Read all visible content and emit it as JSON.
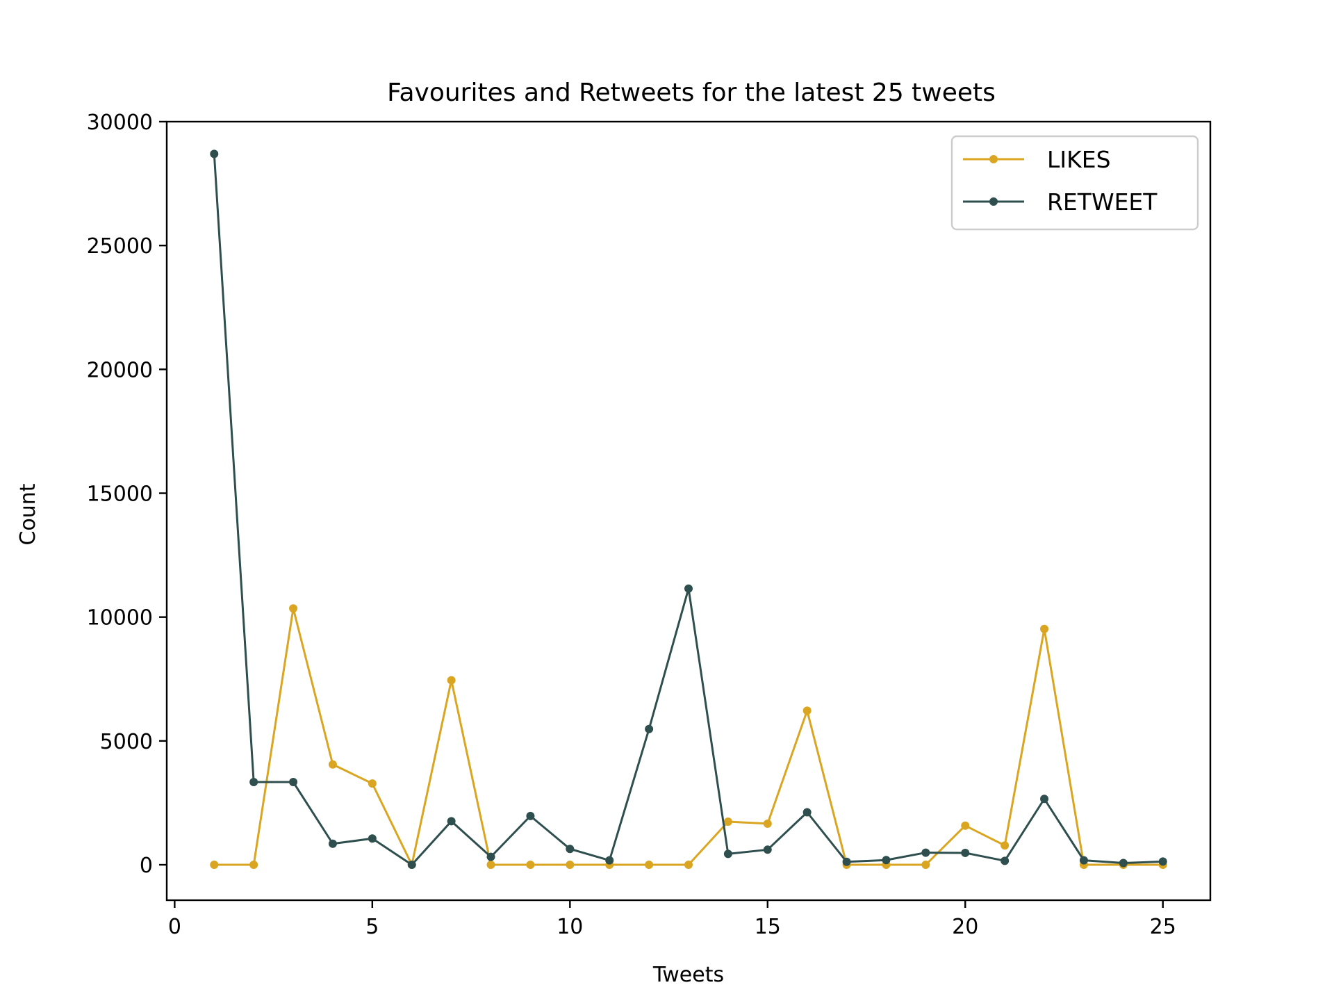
{
  "chart_data": {
    "type": "line",
    "title": "Favourites and Retweets for the latest 25 tweets",
    "xlabel": "Tweets",
    "ylabel": "Count",
    "x": [
      1,
      2,
      3,
      4,
      5,
      6,
      7,
      8,
      9,
      10,
      11,
      12,
      13,
      14,
      15,
      16,
      17,
      18,
      19,
      20,
      21,
      22,
      23,
      24,
      25
    ],
    "xlim": [
      -0.2,
      26.2
    ],
    "ylim": [
      -1430,
      30000
    ],
    "xticks": [
      0,
      5,
      10,
      15,
      20,
      25
    ],
    "yticks": [
      0,
      5000,
      10000,
      15000,
      20000,
      25000,
      30000
    ],
    "xtick_labels": [
      "0",
      "5",
      "10",
      "15",
      "20",
      "25"
    ],
    "ytick_labels": [
      "0",
      "5000",
      "10000",
      "15000",
      "20000",
      "25000",
      "30000"
    ],
    "grid": false,
    "legend_position": "top-right",
    "series": [
      {
        "name": "LIKES",
        "color": "#DAA520",
        "marker": "circle",
        "values": [
          0,
          0,
          10350,
          4050,
          3280,
          0,
          7450,
          0,
          0,
          0,
          0,
          0,
          0,
          1740,
          1660,
          6220,
          0,
          0,
          0,
          1580,
          780,
          9520,
          0,
          0,
          0
        ]
      },
      {
        "name": "RETWEET",
        "color": "#2F4F4F",
        "marker": "circle",
        "values": [
          28700,
          3340,
          3340,
          850,
          1060,
          0,
          1760,
          320,
          1970,
          640,
          180,
          5480,
          11150,
          440,
          610,
          2120,
          120,
          190,
          490,
          480,
          160,
          2660,
          180,
          70,
          130
        ]
      }
    ]
  }
}
